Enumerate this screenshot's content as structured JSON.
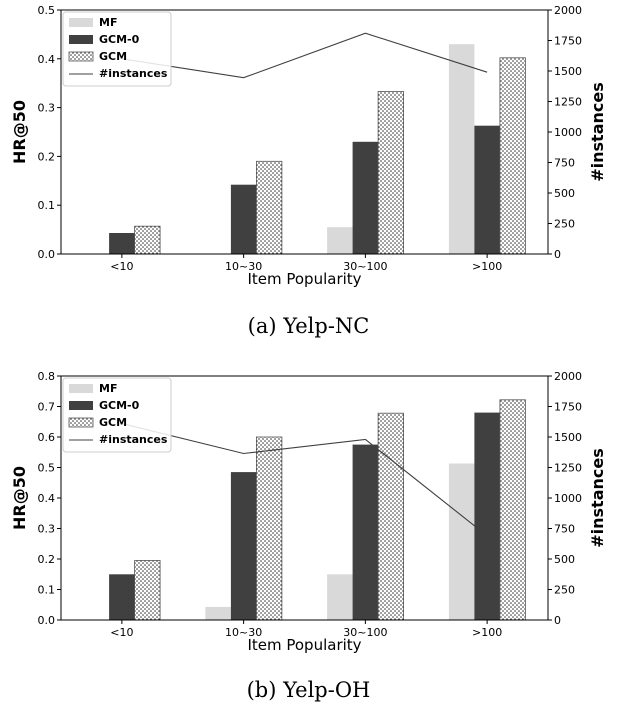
{
  "colors": {
    "MF": "#d9d9d9",
    "GCM-0": "#404040",
    "GCM": "#ffffff",
    "instances": "#404040"
  },
  "chart_data": [
    {
      "type": "bar",
      "caption": "(a)  Yelp-NC",
      "xlabel": "Item Popularity",
      "ylabel": "HR@50",
      "y2label": "#instances",
      "categories": [
        "<10",
        "10~30",
        "30~100",
        ">100"
      ],
      "ylim": [
        0,
        0.5
      ],
      "yticks": [
        "0.0",
        "0.1",
        "0.2",
        "0.3",
        "0.4",
        "0.5"
      ],
      "y2lim": [
        0,
        2000
      ],
      "y2ticks": [
        "0",
        "250",
        "500",
        "750",
        "1000",
        "1250",
        "1500",
        "1750",
        "2000"
      ],
      "legend_position": "top-left",
      "series": [
        {
          "name": "MF",
          "values": [
            0.0,
            0.0,
            0.055,
            0.43
          ]
        },
        {
          "name": "GCM-0",
          "values": [
            0.043,
            0.142,
            0.23,
            0.263
          ]
        },
        {
          "name": "GCM",
          "values": [
            0.057,
            0.19,
            0.333,
            0.402
          ]
        }
      ],
      "line_series": {
        "name": "#instances",
        "axis": "right",
        "values": [
          1600,
          1445,
          1810,
          1490
        ]
      }
    },
    {
      "type": "bar",
      "caption": "(b)  Yelp-OH",
      "xlabel": "Item Popularity",
      "ylabel": "HR@50",
      "y2label": "#instances",
      "categories": [
        "<10",
        "10~30",
        "30~100",
        ">100"
      ],
      "ylim": [
        0,
        0.8
      ],
      "yticks": [
        "0.0",
        "0.1",
        "0.2",
        "0.3",
        "0.4",
        "0.5",
        "0.6",
        "0.7",
        "0.8"
      ],
      "y2lim": [
        0,
        2000
      ],
      "y2ticks": [
        "0",
        "250",
        "500",
        "750",
        "1000",
        "1250",
        "1500",
        "1750",
        "2000"
      ],
      "legend_position": "top-left",
      "series": [
        {
          "name": "MF",
          "values": [
            0.0,
            0.043,
            0.15,
            0.513
          ]
        },
        {
          "name": "GCM-0",
          "values": [
            0.15,
            0.485,
            0.575,
            0.68
          ]
        },
        {
          "name": "GCM",
          "values": [
            0.195,
            0.6,
            0.678,
            0.722
          ]
        }
      ],
      "line_series": {
        "name": "#instances",
        "axis": "right",
        "values": [
          1610,
          1365,
          1480,
          690
        ]
      }
    }
  ]
}
